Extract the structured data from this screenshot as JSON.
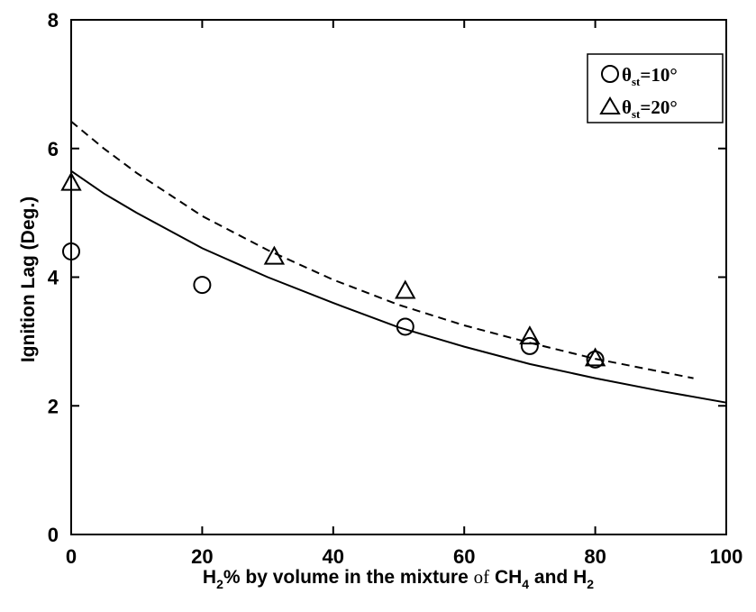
{
  "chart_data": {
    "type": "scatter",
    "title": "",
    "xlabel": {
      "base": "H",
      "sub1": "2",
      "mid": "% by volume in the mixture ",
      "of": "of",
      "ch": " CH",
      "sub2": "4",
      "and": " and H",
      "sub3": "2"
    },
    "ylabel": "Ignition Lag (Deg.)",
    "xlim": [
      0,
      100
    ],
    "ylim": [
      0,
      8
    ],
    "xticks": [
      "0",
      "20",
      "40",
      "60",
      "80",
      "100"
    ],
    "yticks": [
      "0",
      "2",
      "4",
      "6",
      "8"
    ],
    "grid": false,
    "legend_position": "top-right",
    "legend": [
      {
        "marker": "circle",
        "theta": "θ",
        "sub": "st",
        "label": "=10°"
      },
      {
        "marker": "triangle",
        "theta": "θ",
        "sub": "st",
        "label": "=20°"
      }
    ],
    "series": [
      {
        "name": "θst=10°",
        "kind": "points",
        "marker": "circle",
        "x": [
          0,
          20,
          51,
          70,
          80
        ],
        "y": [
          4.4,
          3.88,
          3.23,
          2.93,
          2.72
        ]
      },
      {
        "name": "θst=20°",
        "kind": "points",
        "marker": "triangle",
        "x": [
          0,
          31,
          51,
          70,
          80
        ],
        "y": [
          5.47,
          4.32,
          3.79,
          3.08,
          2.74
        ]
      },
      {
        "kind": "curve",
        "style": "solid",
        "x": [
          0,
          5,
          10,
          20,
          30,
          40,
          50,
          60,
          70,
          80,
          90,
          100
        ],
        "y": [
          5.65,
          5.3,
          5.0,
          4.45,
          4.0,
          3.6,
          3.22,
          2.92,
          2.65,
          2.43,
          2.23,
          2.05
        ]
      },
      {
        "kind": "curve",
        "style": "dashed",
        "x": [
          0,
          5,
          10,
          20,
          30,
          40,
          50,
          60,
          70,
          80,
          90,
          95
        ],
        "y": [
          6.42,
          6.0,
          5.62,
          4.95,
          4.42,
          3.96,
          3.57,
          3.25,
          2.98,
          2.73,
          2.53,
          2.43
        ]
      }
    ]
  }
}
